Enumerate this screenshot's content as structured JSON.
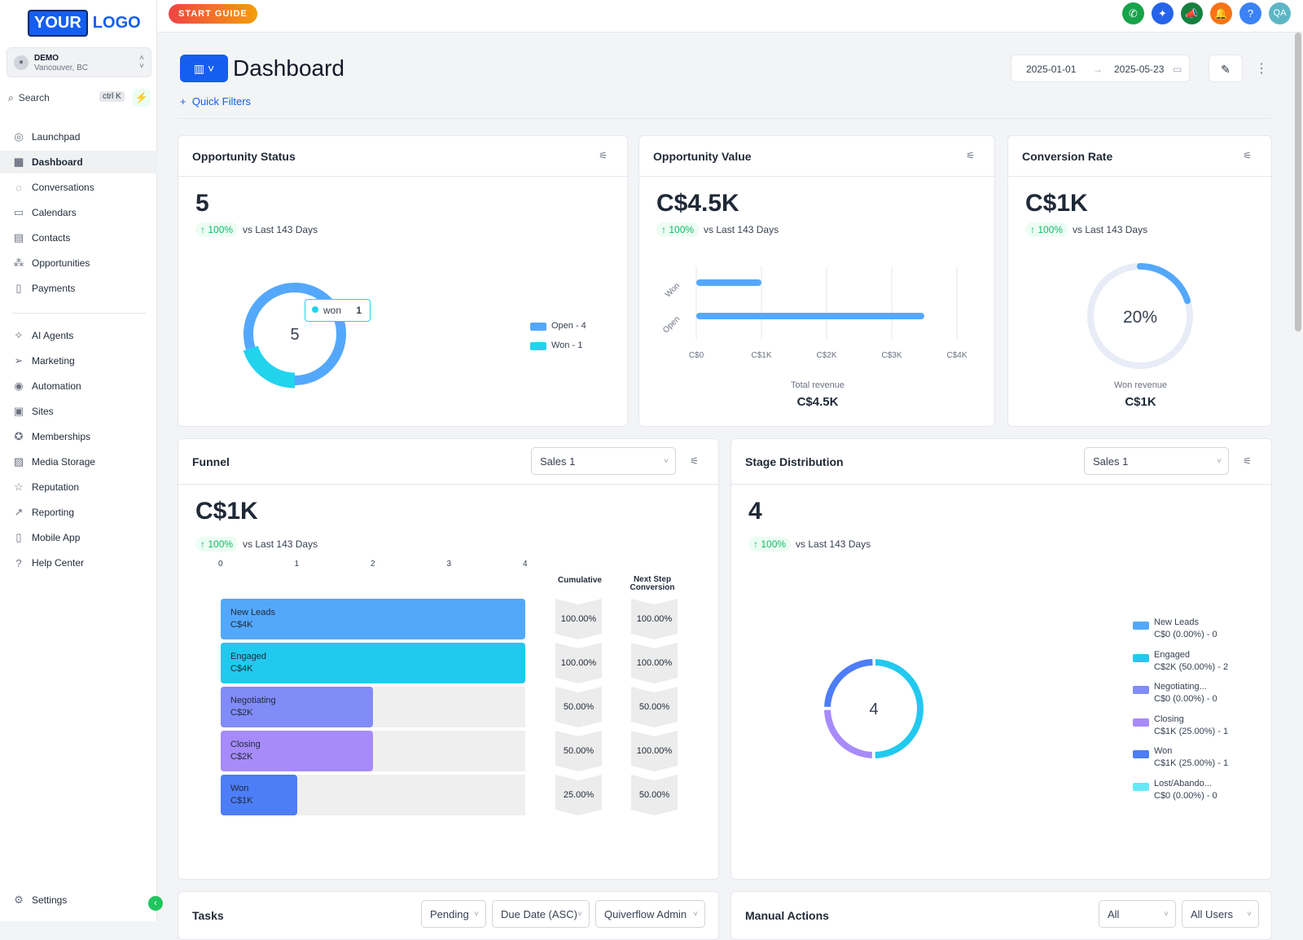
{
  "logo": {
    "your": "YOUR",
    "logo": "LOGO"
  },
  "location": {
    "name": "DEMO",
    "city": "Vancouver, BC"
  },
  "search": {
    "placeholder": "Search",
    "shortcut": "ctrl K"
  },
  "nav": {
    "items": [
      {
        "label": "Launchpad",
        "icon": "rocket-icon"
      },
      {
        "label": "Dashboard",
        "icon": "grid-icon",
        "active": true
      },
      {
        "label": "Conversations",
        "icon": "chat-icon"
      },
      {
        "label": "Calendars",
        "icon": "calendar-icon"
      },
      {
        "label": "Contacts",
        "icon": "contacts-icon"
      },
      {
        "label": "Opportunities",
        "icon": "opportunities-icon"
      },
      {
        "label": "Payments",
        "icon": "payments-icon"
      }
    ],
    "items2": [
      {
        "label": "AI Agents",
        "icon": "sparkle-icon"
      },
      {
        "label": "Marketing",
        "icon": "send-icon"
      },
      {
        "label": "Automation",
        "icon": "automation-icon"
      },
      {
        "label": "Sites",
        "icon": "sites-icon"
      },
      {
        "label": "Memberships",
        "icon": "badge-icon"
      },
      {
        "label": "Media Storage",
        "icon": "image-icon"
      },
      {
        "label": "Reputation",
        "icon": "star-icon"
      },
      {
        "label": "Reporting",
        "icon": "trend-icon"
      },
      {
        "label": "Mobile App",
        "icon": "mobile-icon"
      },
      {
        "label": "Help Center",
        "icon": "help-icon"
      }
    ],
    "settings": "Settings"
  },
  "topbar": {
    "start_guide": "START GUIDE",
    "avatar": "QA"
  },
  "page": {
    "title": "Dashboard",
    "quick_filters": "Quick Filters",
    "date_from": "2025-01-01",
    "date_to": "2025-05-23"
  },
  "opp_status": {
    "title": "Opportunity Status",
    "value": "5",
    "pct": "100%",
    "vs": "vs Last 143 Days",
    "center": "5",
    "tooltip_label": "won",
    "tooltip_value": "1",
    "legend": [
      "Open - 4",
      "Won - 1"
    ],
    "colors": [
      "#54a8fc",
      "#22d3ee"
    ]
  },
  "opp_value": {
    "title": "Opportunity Value",
    "value": "C$4.5K",
    "pct": "100%",
    "vs": "vs Last 143 Days",
    "total_label": "Total revenue",
    "total_value": "C$4.5K"
  },
  "conv_rate": {
    "title": "Conversion Rate",
    "value": "C$1K",
    "pct": "100%",
    "vs": "vs Last 143 Days",
    "center": "20%",
    "won_label": "Won revenue",
    "won_value": "C$1K",
    "fraction": 0.2
  },
  "funnel": {
    "title": "Funnel",
    "select": "Sales 1",
    "value": "C$1K",
    "pct": "100%",
    "vs": "vs Last 143 Days",
    "col_cumulative": "Cumulative",
    "col_next": "Next Step Conversion",
    "axis": [
      "0",
      "1",
      "2",
      "3",
      "4"
    ],
    "stages": [
      {
        "name": "New Leads",
        "amount": "C$4K",
        "count": 4,
        "cumulative": "100.00%",
        "next": "100.00%",
        "color": "#54a8fc"
      },
      {
        "name": "Engaged",
        "amount": "C$4K",
        "count": 4,
        "cumulative": "100.00%",
        "next": "100.00%",
        "color": "#22c9ee"
      },
      {
        "name": "Negotiating",
        "amount": "C$2K",
        "count": 2,
        "cumulative": "50.00%",
        "next": "50.00%",
        "color": "#818cf8"
      },
      {
        "name": "Closing",
        "amount": "C$2K",
        "count": 2,
        "cumulative": "50.00%",
        "next": "100.00%",
        "color": "#a78bfa"
      },
      {
        "name": "Won",
        "amount": "C$1K",
        "count": 1,
        "cumulative": "25.00%",
        "next": "50.00%",
        "color": "#4d7ef7"
      }
    ]
  },
  "stage_dist": {
    "title": "Stage Distribution",
    "select": "Sales 1",
    "value": "4",
    "pct": "100%",
    "vs": "vs Last 143 Days",
    "center": "4",
    "legend": [
      {
        "name": "New Leads",
        "detail": "C$0 (0.00%) - 0",
        "color": "#54a8fc"
      },
      {
        "name": "Engaged",
        "detail": "C$2K (50.00%) - 2",
        "color": "#22c9ee"
      },
      {
        "name": "Negotiating...",
        "detail": "C$0 (0.00%) - 0",
        "color": "#818cf8"
      },
      {
        "name": "Closing",
        "detail": "C$1K (25.00%) - 1",
        "color": "#a78bfa"
      },
      {
        "name": "Won",
        "detail": "C$1K (25.00%) - 1",
        "color": "#4d7ef7"
      },
      {
        "name": "Lost/Abando...",
        "detail": "C$0 (0.00%) - 0",
        "color": "#67e8f9"
      }
    ]
  },
  "tasks": {
    "title": "Tasks",
    "filter1": "Pending",
    "filter2": "Due Date (ASC)",
    "filter3": "Quiverflow Admin"
  },
  "manual": {
    "title": "Manual Actions",
    "filter1": "All",
    "filter2": "All Users"
  },
  "chart_data": [
    {
      "type": "pie",
      "title": "Opportunity Status",
      "categories": [
        "Open",
        "Won"
      ],
      "values": [
        4,
        1
      ]
    },
    {
      "type": "bar",
      "title": "Opportunity Value",
      "categories": [
        "Won",
        "Open"
      ],
      "values": [
        1000,
        3500
      ],
      "xlabel": "Total revenue",
      "xlim": [
        0,
        4000
      ],
      "x_ticks": [
        "C$0",
        "C$1K",
        "C$2K",
        "C$3K",
        "C$4K"
      ]
    },
    {
      "type": "pie",
      "title": "Conversion Rate",
      "categories": [
        "Won",
        "Other"
      ],
      "values": [
        20,
        80
      ]
    },
    {
      "type": "bar",
      "title": "Funnel",
      "categories": [
        "New Leads",
        "Engaged",
        "Negotiating",
        "Closing",
        "Won"
      ],
      "values": [
        4,
        4,
        2,
        2,
        1
      ],
      "xlim": [
        0,
        4
      ]
    },
    {
      "type": "pie",
      "title": "Stage Distribution",
      "categories": [
        "New Leads",
        "Engaged",
        "Negotiating...",
        "Closing",
        "Won",
        "Lost/Abando..."
      ],
      "values": [
        0,
        2,
        0,
        1,
        1,
        0
      ]
    }
  ]
}
